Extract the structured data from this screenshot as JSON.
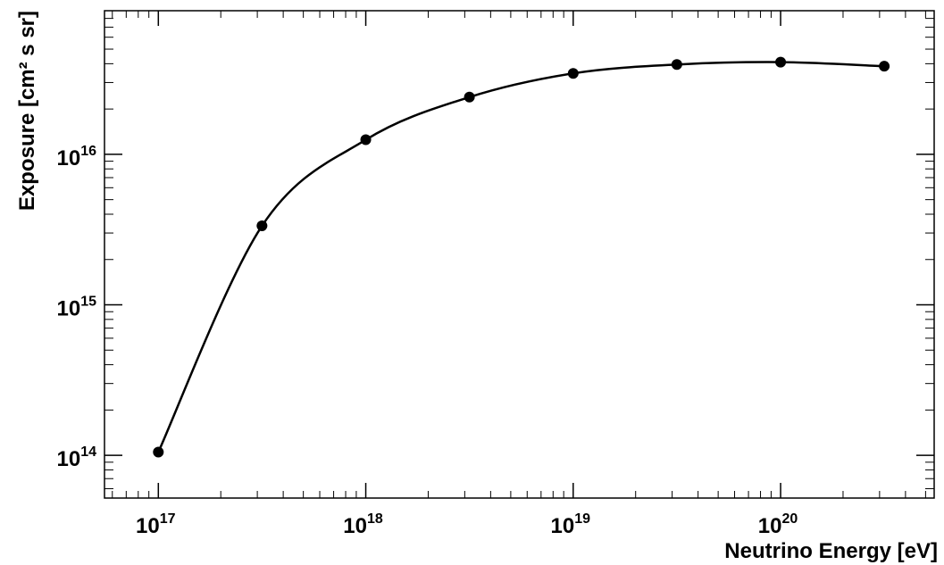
{
  "chart_data": {
    "type": "line",
    "xlabel": "Neutrino Energy [eV]",
    "ylabel": "Exposure [cm² s sr]",
    "xscale": "log",
    "yscale": "log",
    "xlim": [
      5.5e+16,
      5.5e+20
    ],
    "ylim": [
      52000000000000.0,
      9e+16
    ],
    "grid": false,
    "legend": "none",
    "x_ticks": [
      {
        "base": "10",
        "exp": "17",
        "value": 1e+17
      },
      {
        "base": "10",
        "exp": "18",
        "value": 1e+18
      },
      {
        "base": "10",
        "exp": "19",
        "value": 1e+19
      },
      {
        "base": "10",
        "exp": "20",
        "value": 1e+20
      }
    ],
    "y_ticks": [
      {
        "base": "10",
        "exp": "14",
        "value": 100000000000000.0
      },
      {
        "base": "10",
        "exp": "15",
        "value": 1000000000000000.0
      },
      {
        "base": "10",
        "exp": "16",
        "value": 1e+16
      }
    ],
    "series": [
      {
        "x": [
          1e+17,
          3.16e+17,
          1e+18,
          3.16e+18,
          1e+19,
          3.16e+19,
          1e+20,
          3.16e+20
        ],
        "y": [
          105000000000000.0,
          3350000000000000.0,
          1.25e+16,
          2.4e+16,
          3.45e+16,
          3.95e+16,
          4.1e+16,
          3.85e+16
        ],
        "marker": "circle",
        "color": "#000000",
        "smooth": true
      }
    ]
  }
}
